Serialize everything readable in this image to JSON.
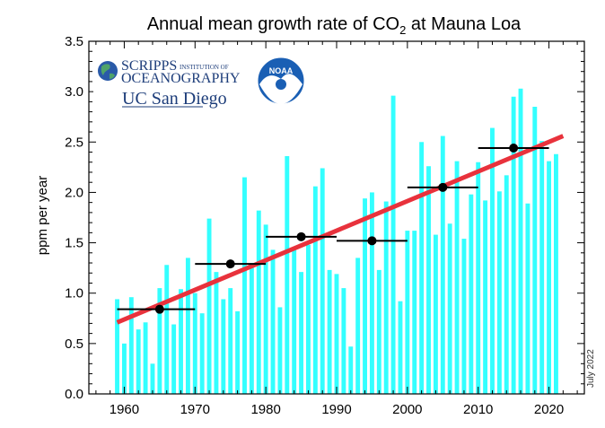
{
  "chart_data": {
    "type": "bar",
    "title_main": "Annual mean growth rate of CO",
    "title_sub": "2",
    "title_end": " at Mauna Loa",
    "ylabel": "ppm per year",
    "xlim": [
      1955,
      2025
    ],
    "ylim": [
      0,
      3.5
    ],
    "xticks": [
      "1960",
      "1970",
      "1980",
      "1990",
      "2000",
      "2010",
      "2020"
    ],
    "yticks": [
      "0.0",
      "0.5",
      "1.0",
      "1.5",
      "2.0",
      "2.5",
      "3.0",
      "3.5"
    ],
    "bar_color": "#33ffff",
    "years": [
      1959,
      1960,
      1961,
      1962,
      1963,
      1964,
      1965,
      1966,
      1967,
      1968,
      1969,
      1970,
      1971,
      1972,
      1973,
      1974,
      1975,
      1976,
      1977,
      1978,
      1979,
      1980,
      1981,
      1982,
      1983,
      1984,
      1985,
      1986,
      1987,
      1988,
      1989,
      1990,
      1991,
      1992,
      1993,
      1994,
      1995,
      1996,
      1997,
      1998,
      1999,
      2000,
      2001,
      2002,
      2003,
      2004,
      2005,
      2006,
      2007,
      2008,
      2009,
      2010,
      2011,
      2012,
      2013,
      2014,
      2015,
      2016,
      2017,
      2018,
      2019,
      2020,
      2021
    ],
    "values": [
      0.94,
      0.5,
      0.96,
      0.64,
      0.71,
      0.3,
      1.05,
      1.28,
      0.69,
      1.04,
      1.35,
      1.0,
      0.8,
      1.74,
      1.21,
      0.94,
      1.05,
      0.82,
      2.15,
      1.3,
      1.82,
      1.68,
      1.43,
      0.86,
      2.36,
      1.43,
      1.21,
      1.48,
      2.06,
      2.24,
      1.23,
      1.19,
      1.05,
      0.47,
      1.35,
      1.94,
      2.0,
      1.23,
      1.91,
      2.96,
      0.92,
      1.62,
      1.62,
      2.5,
      2.26,
      1.58,
      2.56,
      1.69,
      2.31,
      1.54,
      1.98,
      2.3,
      1.92,
      2.64,
      2.01,
      2.17,
      2.95,
      3.03,
      1.89,
      2.85,
      2.51,
      2.31,
      2.38
    ],
    "trend": {
      "x": [
        1959,
        2022
      ],
      "y": [
        0.71,
        2.56
      ],
      "color": "#e8323c"
    },
    "decadal": [
      {
        "x0": 1959,
        "x1": 1970,
        "xc": 1965,
        "y": 0.84
      },
      {
        "x0": 1970,
        "x1": 1980,
        "xc": 1975,
        "y": 1.29
      },
      {
        "x0": 1980,
        "x1": 1990,
        "xc": 1985,
        "y": 1.56
      },
      {
        "x0": 1990,
        "x1": 2000,
        "xc": 1995,
        "y": 1.52
      },
      {
        "x0": 2000,
        "x1": 2010,
        "xc": 2005,
        "y": 2.05
      },
      {
        "x0": 2010,
        "x1": 2020,
        "xc": 2015,
        "y": 2.44
      }
    ]
  },
  "logos": {
    "scripps_name": "SCRIPPS",
    "scripps_institution": "INSTITUTION OF",
    "scripps_oceanography": "OCEANOGRAPHY",
    "ucsd": "UC San Diego",
    "noaa": "NOAA"
  },
  "datestamp": "July 2022"
}
